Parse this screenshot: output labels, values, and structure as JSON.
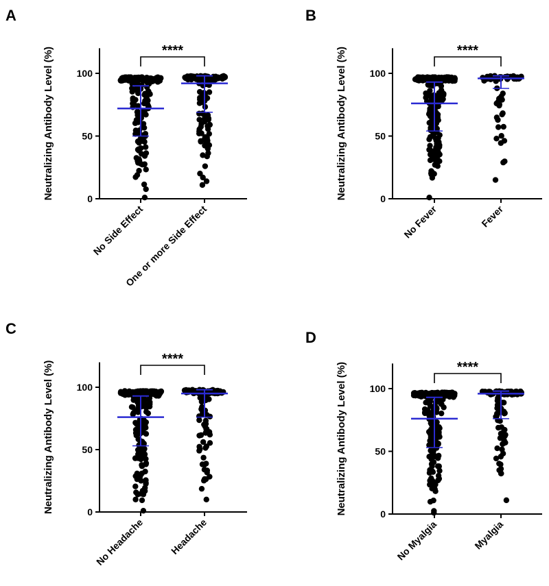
{
  "colors": {
    "points": "#000000",
    "summary": "#2a2ad2",
    "axis": "#000000"
  },
  "chart_data": [
    {
      "type": "scatter",
      "panel": "A",
      "ylabel": "Neutralizing Antibody Level (%)",
      "ylim": [
        0,
        120
      ],
      "yticks": [
        "0",
        "50",
        "100"
      ],
      "significance": "****",
      "categories": [
        "No Side Effect",
        "One or more Side Effect"
      ],
      "groups": [
        {
          "name": "No Side Effect",
          "mean": 72,
          "sd_low": 50,
          "sd_high": 90,
          "max": 97,
          "min": 1,
          "n": 220
        },
        {
          "name": "One or more Side Effect",
          "mean": 92,
          "sd_low": 69,
          "sd_high": 98,
          "max": 98,
          "min": 11,
          "n": 120
        }
      ]
    },
    {
      "type": "scatter",
      "panel": "B",
      "ylabel": "Neutralizing Antibody Level (%)",
      "ylim": [
        0,
        120
      ],
      "yticks": [
        "0",
        "50",
        "100"
      ],
      "significance": "****",
      "categories": [
        "No Fever",
        "Fever"
      ],
      "groups": [
        {
          "name": "No Fever",
          "mean": 76,
          "sd_low": 54,
          "sd_high": 93,
          "max": 97,
          "min": 1,
          "n": 240
        },
        {
          "name": "Fever",
          "mean": 96,
          "sd_low": 88,
          "sd_high": 98,
          "max": 98,
          "min": 15,
          "n": 60
        }
      ]
    },
    {
      "type": "scatter",
      "panel": "C",
      "ylabel": "Neutralizing Antibody Level (%)",
      "ylim": [
        0,
        120
      ],
      "yticks": [
        "0",
        "50",
        "100"
      ],
      "significance": "****",
      "categories": [
        "No Headache",
        "Headache"
      ],
      "groups": [
        {
          "name": "No Headache",
          "mean": 76,
          "sd_low": 53,
          "sd_high": 93,
          "max": 97,
          "min": 1,
          "n": 240
        },
        {
          "name": "Headache",
          "mean": 95,
          "sd_low": 76,
          "sd_high": 98,
          "max": 98,
          "min": 10,
          "n": 100
        }
      ]
    },
    {
      "type": "scatter",
      "panel": "D",
      "ylabel": "Neutralizing Antibody Level (%)",
      "ylim": [
        0,
        120
      ],
      "yticks": [
        "0",
        "50",
        "100"
      ],
      "significance": "****",
      "categories": [
        "No Myalgia",
        "Myalgia"
      ],
      "groups": [
        {
          "name": "No Myalgia",
          "mean": 76,
          "sd_low": 53,
          "sd_high": 93,
          "max": 97,
          "min": 1,
          "n": 240
        },
        {
          "name": "Myalgia",
          "mean": 96,
          "sd_low": 76,
          "sd_high": 98,
          "max": 98,
          "min": 11,
          "n": 100
        }
      ]
    }
  ]
}
